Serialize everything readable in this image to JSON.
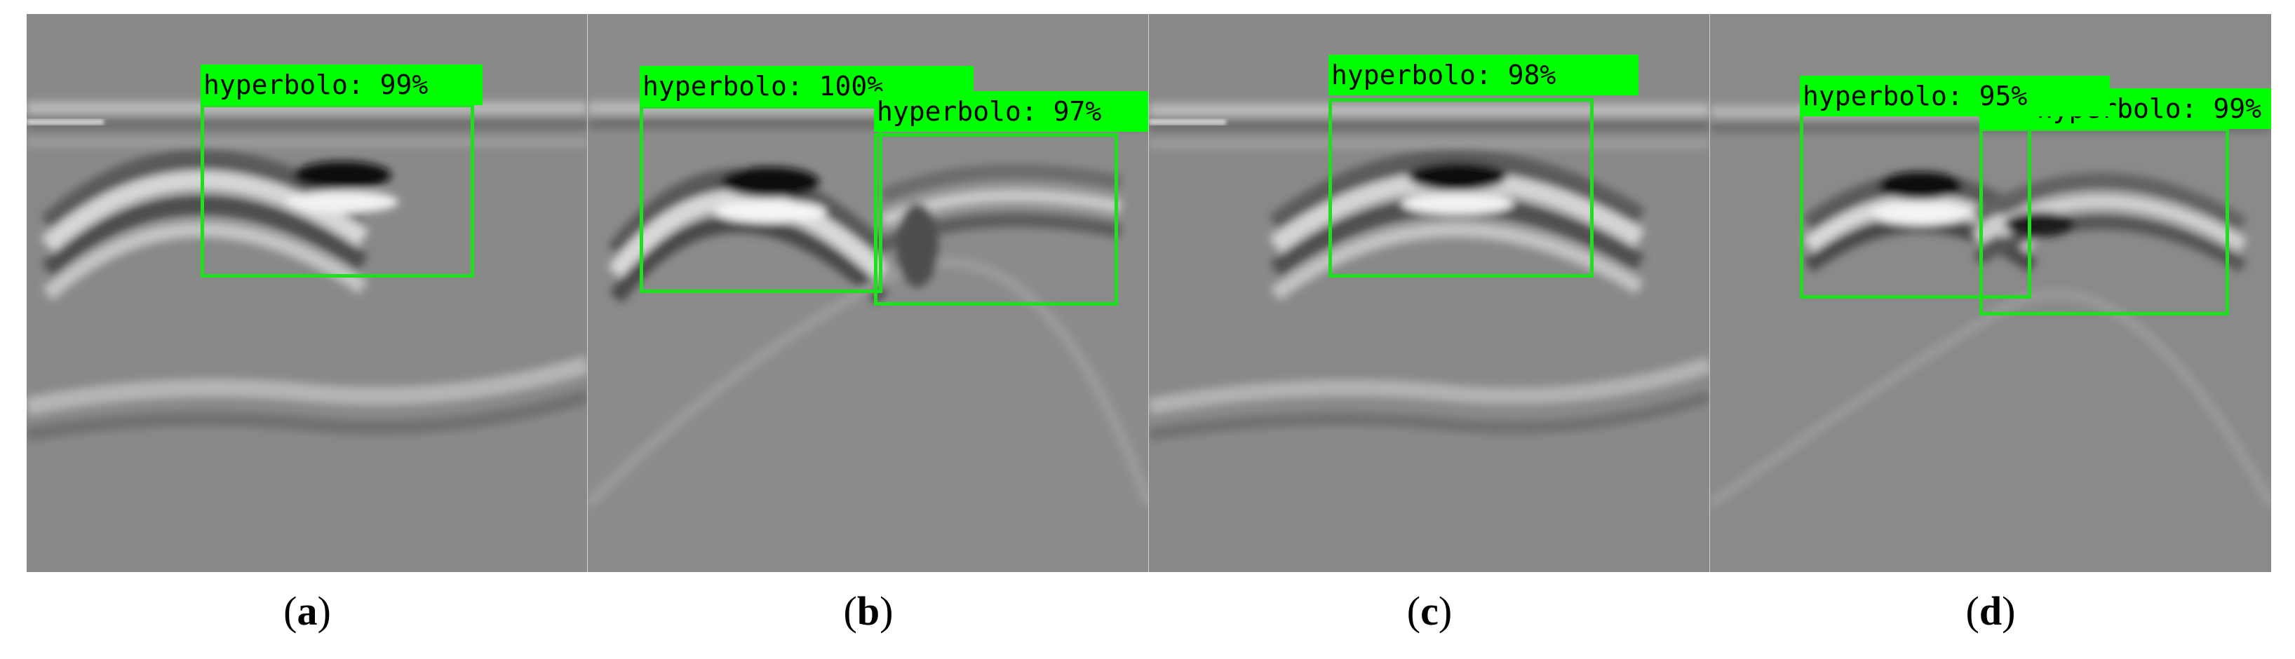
{
  "figure": {
    "panels": [
      {
        "caption_letter": "a",
        "detections": [
          {
            "label": "hyperbolo: 99%"
          }
        ]
      },
      {
        "caption_letter": "b",
        "detections": [
          {
            "label": "hyperbolo: 100%"
          },
          {
            "label": "hyperbolo: 97%"
          }
        ]
      },
      {
        "caption_letter": "c",
        "detections": [
          {
            "label": "hyperbolo: 98%"
          }
        ]
      },
      {
        "caption_letter": "d",
        "detections": [
          {
            "label": "hyperbolo: 95%"
          },
          {
            "label": "hyperbolo: 99%"
          }
        ]
      }
    ],
    "colors": {
      "box": "#1fe01f",
      "label_bg": "#00ff00",
      "radar_bg": "#8a8a8a"
    }
  }
}
